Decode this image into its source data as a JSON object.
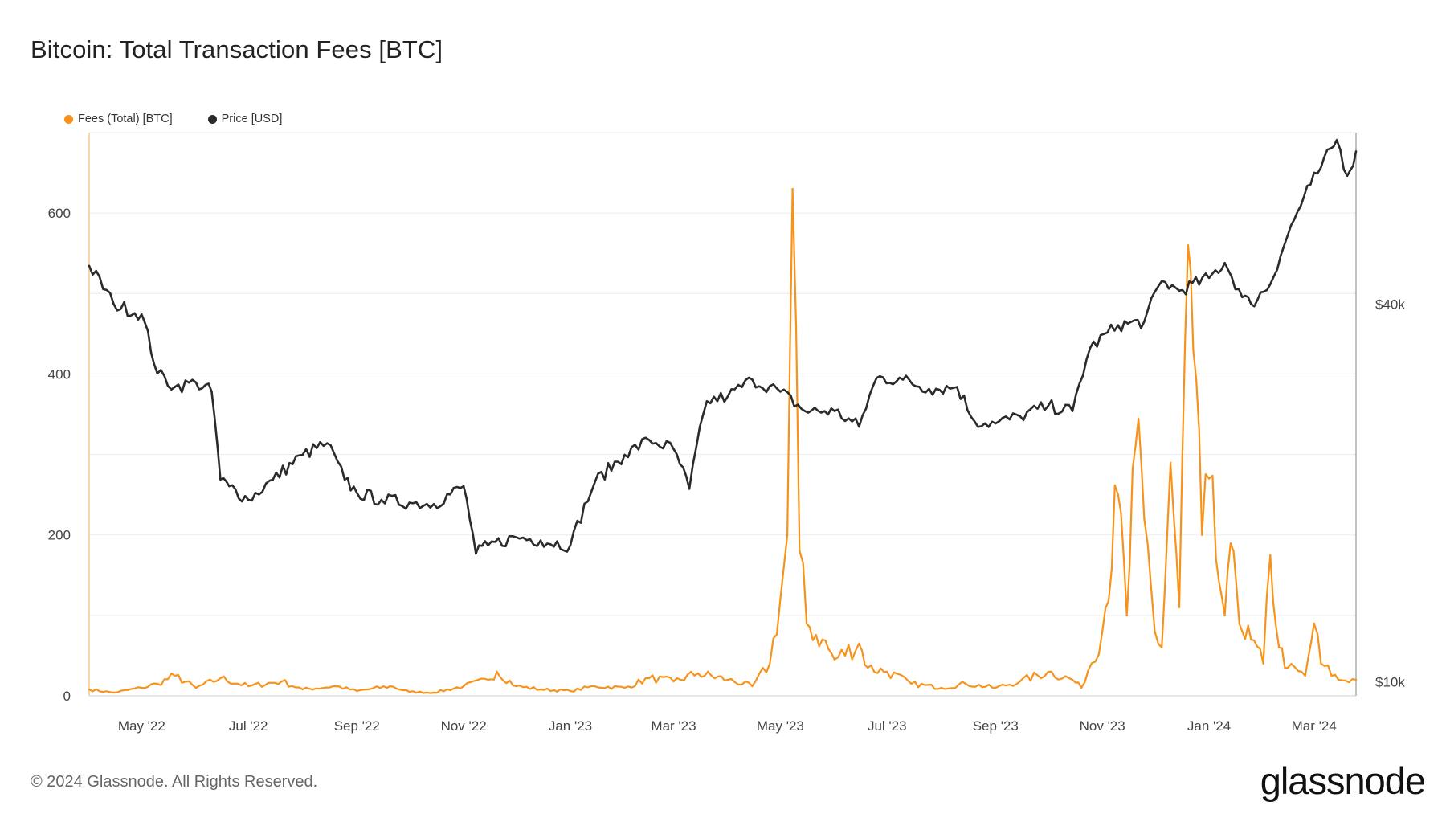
{
  "colors": {
    "fees": "#f7931a",
    "price": "#2b2b2b",
    "grid": "#ececec"
  },
  "footer": {
    "copyright": "© 2024 Glassnode. All Rights Reserved.",
    "brand": "glassnode"
  },
  "chart_data": {
    "type": "line",
    "title": "Bitcoin: Total Transaction Fees [BTC]",
    "legend": {
      "placement": "top-left",
      "entries": [
        "Fees (Total) [BTC]",
        "Price [USD]"
      ]
    },
    "grid": true,
    "x_range": [
      "2022-04-01",
      "2024-03-25"
    ],
    "x_ticks": [
      {
        "date": "2022-05-01",
        "label": "May '22"
      },
      {
        "date": "2022-07-01",
        "label": "Jul '22"
      },
      {
        "date": "2022-09-01",
        "label": "Sep '22"
      },
      {
        "date": "2022-11-01",
        "label": "Nov '22"
      },
      {
        "date": "2023-01-01",
        "label": "Jan '23"
      },
      {
        "date": "2023-03-01",
        "label": "Mar '23"
      },
      {
        "date": "2023-05-01",
        "label": "May '23"
      },
      {
        "date": "2023-07-01",
        "label": "Jul '23"
      },
      {
        "date": "2023-09-01",
        "label": "Sep '23"
      },
      {
        "date": "2023-11-01",
        "label": "Nov '23"
      },
      {
        "date": "2024-01-01",
        "label": "Jan '24"
      },
      {
        "date": "2024-03-01",
        "label": "Mar '24"
      }
    ],
    "y_left": {
      "label": "Fees (Total) [BTC]",
      "ylim": [
        0,
        700
      ],
      "ticks": [
        0,
        200,
        400,
        600
      ]
    },
    "y_right": {
      "label": "Price [USD]",
      "scale": "log",
      "ylim": [
        9500,
        75000
      ],
      "ticks": [
        {
          "value": 10000,
          "label": "$10k"
        },
        {
          "value": 40000,
          "label": "$40k"
        }
      ]
    },
    "series": [
      {
        "name": "Fees (Total) [BTC]",
        "axis": "left",
        "points": [
          [
            "2022-04-01",
            8
          ],
          [
            "2022-04-15",
            4
          ],
          [
            "2022-05-01",
            10
          ],
          [
            "2022-05-10",
            15
          ],
          [
            "2022-05-20",
            25
          ],
          [
            "2022-06-01",
            10
          ],
          [
            "2022-06-15",
            22
          ],
          [
            "2022-07-01",
            12
          ],
          [
            "2022-07-20",
            18
          ],
          [
            "2022-08-01",
            8
          ],
          [
            "2022-08-20",
            12
          ],
          [
            "2022-09-01",
            6
          ],
          [
            "2022-09-20",
            12
          ],
          [
            "2022-10-01",
            5
          ],
          [
            "2022-10-15",
            4
          ],
          [
            "2022-11-01",
            12
          ],
          [
            "2022-11-15",
            20
          ],
          [
            "2022-11-20",
            30
          ],
          [
            "2022-12-01",
            12
          ],
          [
            "2022-12-15",
            8
          ],
          [
            "2023-01-01",
            6
          ],
          [
            "2023-01-15",
            12
          ],
          [
            "2023-02-01",
            10
          ],
          [
            "2023-02-15",
            22
          ],
          [
            "2023-03-01",
            18
          ],
          [
            "2023-03-15",
            28
          ],
          [
            "2023-04-01",
            20
          ],
          [
            "2023-04-15",
            12
          ],
          [
            "2023-04-25",
            40
          ],
          [
            "2023-05-01",
            120
          ],
          [
            "2023-05-05",
            200
          ],
          [
            "2023-05-08",
            630
          ],
          [
            "2023-05-12",
            180
          ],
          [
            "2023-05-16",
            90
          ],
          [
            "2023-05-25",
            70
          ],
          [
            "2023-06-01",
            45
          ],
          [
            "2023-06-15",
            65
          ],
          [
            "2023-06-20",
            35
          ],
          [
            "2023-07-01",
            30
          ],
          [
            "2023-07-15",
            15
          ],
          [
            "2023-08-01",
            10
          ],
          [
            "2023-08-15",
            15
          ],
          [
            "2023-09-01",
            10
          ],
          [
            "2023-09-15",
            18
          ],
          [
            "2023-10-01",
            30
          ],
          [
            "2023-10-15",
            20
          ],
          [
            "2023-10-20",
            10
          ],
          [
            "2023-11-01",
            80
          ],
          [
            "2023-11-10",
            250
          ],
          [
            "2023-11-15",
            100
          ],
          [
            "2023-11-20",
            310
          ],
          [
            "2023-11-25",
            220
          ],
          [
            "2023-12-01",
            80
          ],
          [
            "2023-12-05",
            60
          ],
          [
            "2023-12-10",
            290
          ],
          [
            "2023-12-15",
            110
          ],
          [
            "2023-12-20",
            560
          ],
          [
            "2023-12-23",
            430
          ],
          [
            "2023-12-28",
            200
          ],
          [
            "2024-01-01",
            270
          ],
          [
            "2024-01-05",
            170
          ],
          [
            "2024-01-10",
            100
          ],
          [
            "2024-01-15",
            180
          ],
          [
            "2024-01-20",
            80
          ],
          [
            "2024-01-25",
            70
          ],
          [
            "2024-02-01",
            40
          ],
          [
            "2024-02-05",
            175
          ],
          [
            "2024-02-10",
            60
          ],
          [
            "2024-02-15",
            35
          ],
          [
            "2024-02-25",
            25
          ],
          [
            "2024-03-01",
            90
          ],
          [
            "2024-03-05",
            40
          ],
          [
            "2024-03-15",
            20
          ],
          [
            "2024-03-25",
            20
          ]
        ]
      },
      {
        "name": "Price [USD]",
        "axis": "right",
        "points": [
          [
            "2022-04-01",
            46000
          ],
          [
            "2022-04-15",
            40000
          ],
          [
            "2022-05-01",
            38500
          ],
          [
            "2022-05-10",
            31000
          ],
          [
            "2022-05-20",
            29500
          ],
          [
            "2022-06-01",
            30000
          ],
          [
            "2022-06-10",
            29000
          ],
          [
            "2022-06-15",
            21000
          ],
          [
            "2022-06-20",
            20500
          ],
          [
            "2022-07-01",
            19500
          ],
          [
            "2022-07-15",
            21000
          ],
          [
            "2022-08-01",
            23000
          ],
          [
            "2022-08-15",
            24000
          ],
          [
            "2022-08-25",
            21000
          ],
          [
            "2022-09-01",
            20000
          ],
          [
            "2022-09-15",
            19500
          ],
          [
            "2022-10-01",
            19300
          ],
          [
            "2022-10-15",
            19200
          ],
          [
            "2022-11-01",
            20500
          ],
          [
            "2022-11-08",
            16000
          ],
          [
            "2022-11-15",
            16500
          ],
          [
            "2022-12-01",
            17000
          ],
          [
            "2022-12-15",
            16800
          ],
          [
            "2023-01-01",
            16500
          ],
          [
            "2023-01-15",
            20800
          ],
          [
            "2023-02-01",
            23000
          ],
          [
            "2023-02-15",
            24300
          ],
          [
            "2023-03-01",
            23500
          ],
          [
            "2023-03-10",
            20300
          ],
          [
            "2023-03-20",
            28000
          ],
          [
            "2023-04-01",
            28500
          ],
          [
            "2023-04-15",
            30300
          ],
          [
            "2023-05-01",
            29000
          ],
          [
            "2023-05-15",
            27000
          ],
          [
            "2023-06-01",
            27000
          ],
          [
            "2023-06-15",
            25500
          ],
          [
            "2023-06-25",
            30500
          ],
          [
            "2023-07-10",
            30300
          ],
          [
            "2023-07-25",
            29300
          ],
          [
            "2023-08-10",
            29500
          ],
          [
            "2023-08-20",
            26000
          ],
          [
            "2023-09-01",
            25800
          ],
          [
            "2023-09-15",
            26500
          ],
          [
            "2023-10-01",
            27500
          ],
          [
            "2023-10-15",
            27000
          ],
          [
            "2023-10-25",
            34000
          ],
          [
            "2023-11-10",
            37000
          ],
          [
            "2023-11-25",
            37500
          ],
          [
            "2023-12-05",
            43500
          ],
          [
            "2023-12-15",
            42000
          ],
          [
            "2024-01-01",
            44000
          ],
          [
            "2024-01-10",
            46500
          ],
          [
            "2024-01-20",
            41000
          ],
          [
            "2024-01-25",
            40000
          ],
          [
            "2024-02-05",
            43000
          ],
          [
            "2024-02-15",
            51500
          ],
          [
            "2024-02-28",
            62000
          ],
          [
            "2024-03-05",
            66000
          ],
          [
            "2024-03-14",
            73000
          ],
          [
            "2024-03-20",
            64000
          ],
          [
            "2024-03-25",
            70000
          ]
        ]
      }
    ]
  }
}
